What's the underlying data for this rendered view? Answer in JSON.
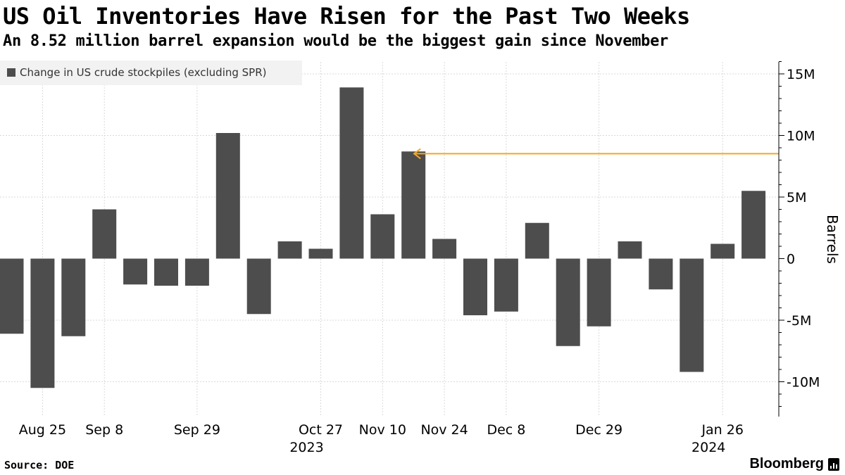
{
  "title": "US Oil Inventories Have Risen for the Past Two Weeks",
  "subtitle": "An 8.52 million barrel expansion would be the biggest gain since November",
  "source": "Source: DOE",
  "brand": "Bloomberg",
  "colors": {
    "bar": "#4d4d4d",
    "annotation": "#f5a623",
    "grid": "#d9d9d9",
    "legend_bg": "#f2f2f2"
  },
  "chart_data": {
    "type": "bar",
    "ylabel": "Barrels",
    "ylim": [
      -12.5,
      16
    ],
    "y_ticks": [
      {
        "value": 15,
        "label": "15M"
      },
      {
        "value": 10,
        "label": "10M"
      },
      {
        "value": 5,
        "label": "5M"
      },
      {
        "value": 0,
        "label": "0"
      },
      {
        "value": -5,
        "label": "-5M"
      },
      {
        "value": -10,
        "label": "-10M"
      }
    ],
    "grid": true,
    "legend_position": "top-left",
    "series": [
      {
        "name": "Change in US crude stockpiles (excluding SPR)",
        "x": [
          "2023-08-18",
          "2023-08-25",
          "2023-09-01",
          "2023-09-08",
          "2023-09-15",
          "2023-09-22",
          "2023-09-29",
          "2023-10-06",
          "2023-10-13",
          "2023-10-20",
          "2023-10-27",
          "2023-11-03",
          "2023-11-10",
          "2023-11-17",
          "2023-11-24",
          "2023-12-01",
          "2023-12-08",
          "2023-12-15",
          "2023-12-22",
          "2023-12-29",
          "2024-01-05",
          "2024-01-12",
          "2024-01-19",
          "2024-01-26",
          "2024-02-02"
        ],
        "values": [
          -6.1,
          -10.5,
          -6.3,
          4.0,
          -2.1,
          -2.2,
          -2.2,
          10.2,
          -4.5,
          1.4,
          0.8,
          13.9,
          3.6,
          8.7,
          1.6,
          -4.6,
          -4.3,
          2.9,
          -7.1,
          -5.5,
          1.4,
          -2.5,
          -9.2,
          1.2,
          5.5
        ]
      }
    ],
    "x_tick_labels": [
      {
        "label": "Aug 25",
        "index": 1,
        "year": ""
      },
      {
        "label": "Sep 8",
        "index": 3,
        "year": ""
      },
      {
        "label": "Sep 29",
        "index": 6,
        "year": ""
      },
      {
        "label": "Oct 27",
        "index": 10,
        "year": "2023"
      },
      {
        "label": "Nov 10",
        "index": 12,
        "year": ""
      },
      {
        "label": "Nov 24",
        "index": 14,
        "year": ""
      },
      {
        "label": "Dec 8",
        "index": 16,
        "year": ""
      },
      {
        "label": "Dec 29",
        "index": 19,
        "year": ""
      },
      {
        "label": "Jan 26",
        "index": 23,
        "year": "2024"
      }
    ],
    "reference_line": {
      "value": 8.52,
      "from_index": 13
    }
  }
}
